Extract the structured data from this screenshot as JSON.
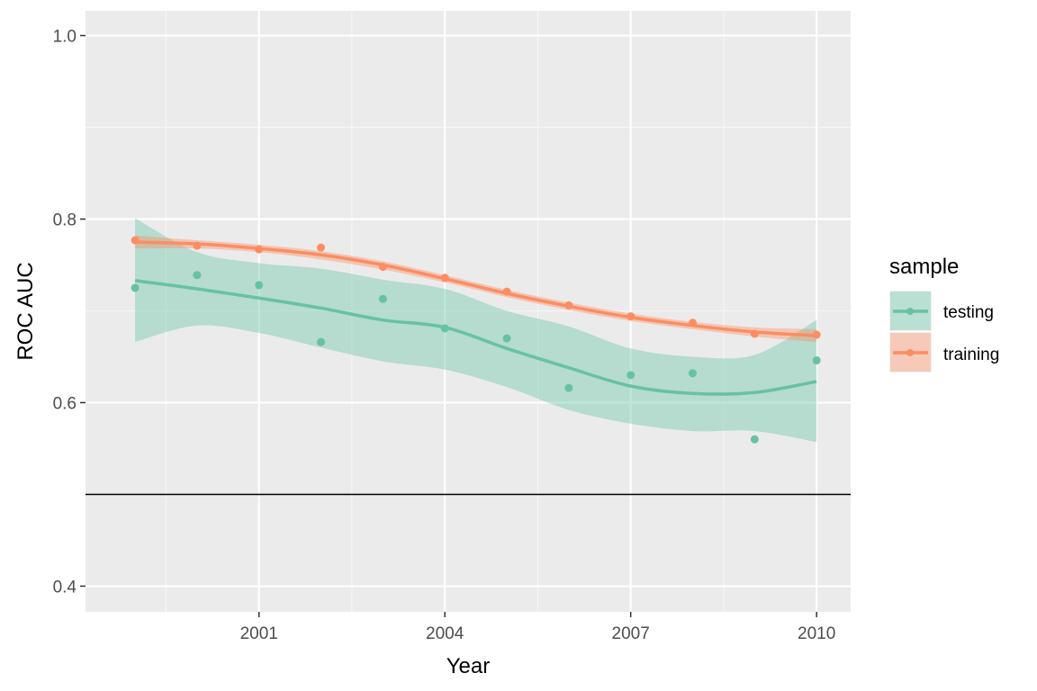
{
  "chart_data": {
    "type": "scatter",
    "title": "",
    "xlabel": "Year",
    "ylabel": "ROC AUC",
    "xlim": [
      1998.2,
      2010.55
    ],
    "ylim": [
      0.372,
      1.027
    ],
    "x_ticks": [
      2001,
      2004,
      2007,
      2010
    ],
    "x_tick_labels": [
      "2001",
      "2004",
      "2007",
      "2010"
    ],
    "y_ticks": [
      0.4,
      0.6,
      0.8,
      1.0
    ],
    "y_tick_labels": [
      "0.4",
      "0.6",
      "0.8",
      "1.0"
    ],
    "grid": true,
    "reference_line": {
      "y": 0.5,
      "color": "#000000"
    },
    "legend": {
      "title": "sample",
      "position": "right",
      "entries": [
        "testing",
        "training"
      ]
    },
    "series": [
      {
        "name": "testing",
        "color": "#66c2a5",
        "x": [
          1999,
          2000,
          2001,
          2002,
          2003,
          2004,
          2005,
          2006,
          2007,
          2008,
          2009,
          2010
        ],
        "y": [
          0.725,
          0.739,
          0.728,
          0.666,
          0.713,
          0.681,
          0.67,
          0.616,
          0.63,
          0.632,
          0.56,
          0.646
        ],
        "smooth": {
          "x": [
            1999,
            2000,
            2001,
            2002,
            2003,
            2004,
            2005,
            2006,
            2007,
            2008,
            2009,
            2010
          ],
          "y": [
            0.733,
            0.724,
            0.714,
            0.703,
            0.69,
            0.682,
            0.659,
            0.638,
            0.618,
            0.61,
            0.611,
            0.623
          ],
          "lower": [
            0.666,
            0.684,
            0.676,
            0.66,
            0.645,
            0.636,
            0.617,
            0.592,
            0.577,
            0.569,
            0.569,
            0.557
          ],
          "upper": [
            0.801,
            0.764,
            0.752,
            0.746,
            0.734,
            0.724,
            0.7,
            0.683,
            0.659,
            0.65,
            0.652,
            0.69
          ]
        }
      },
      {
        "name": "training",
        "color": "#fc8d62",
        "x": [
          1999,
          2000,
          2001,
          2002,
          2003,
          2004,
          2005,
          2006,
          2007,
          2008,
          2009,
          2010
        ],
        "y": [
          0.777,
          0.771,
          0.767,
          0.769,
          0.748,
          0.736,
          0.721,
          0.706,
          0.694,
          0.687,
          0.675,
          0.674
        ],
        "smooth": {
          "x": [
            1999,
            2000,
            2001,
            2002,
            2003,
            2004,
            2005,
            2006,
            2007,
            2008,
            2009,
            2010
          ],
          "y": [
            0.775,
            0.773,
            0.768,
            0.761,
            0.75,
            0.735,
            0.719,
            0.705,
            0.693,
            0.684,
            0.677,
            0.673
          ],
          "lower": [
            0.768,
            0.768,
            0.764,
            0.756,
            0.745,
            0.731,
            0.715,
            0.701,
            0.689,
            0.68,
            0.672,
            0.666
          ],
          "upper": [
            0.782,
            0.777,
            0.772,
            0.765,
            0.754,
            0.739,
            0.723,
            0.709,
            0.697,
            0.688,
            0.682,
            0.68
          ]
        }
      }
    ]
  }
}
